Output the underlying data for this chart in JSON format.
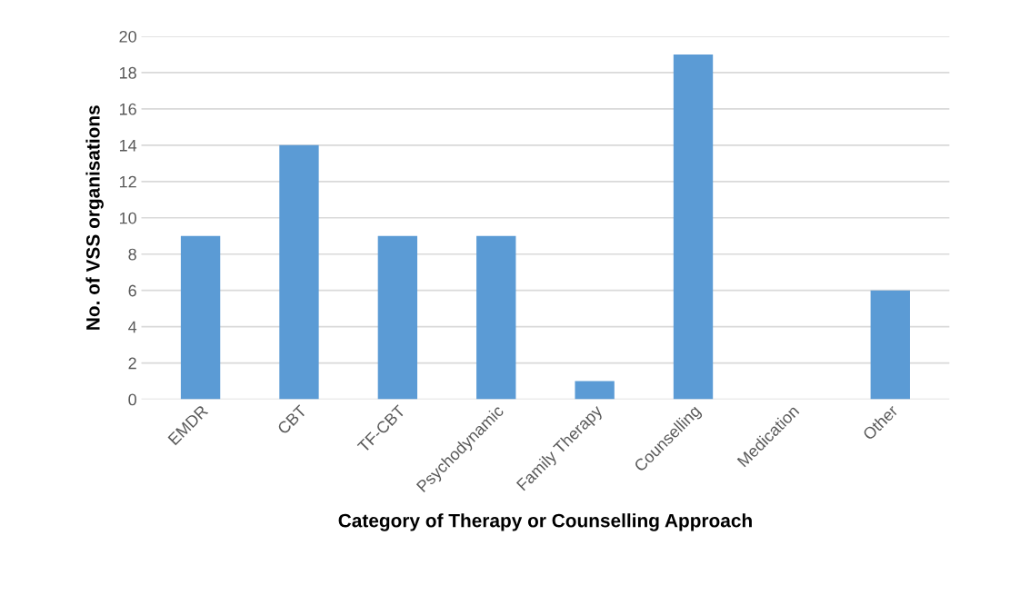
{
  "chart_data": {
    "type": "bar",
    "xlabel": "Category of Therapy or Counselling Approach",
    "ylabel": "No. of VSS organisations",
    "categories": [
      "EMDR",
      "CBT",
      "TF-CBT",
      "Psychodynamic",
      "Family Therapy",
      "Counselling",
      "Medication",
      "Other"
    ],
    "values": [
      9,
      14,
      9,
      9,
      1,
      19,
      0,
      6
    ],
    "color": "#5b9bd5",
    "ylim": [
      0,
      20
    ],
    "yticks": [
      0,
      2,
      4,
      6,
      8,
      10,
      12,
      14,
      16,
      18,
      20
    ],
    "grid": "y"
  }
}
